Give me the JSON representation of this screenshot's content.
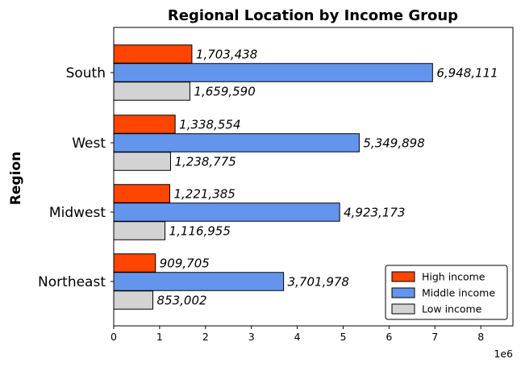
{
  "chart_data": {
    "type": "bar",
    "orientation": "horizontal",
    "title": "Regional Location by Income Group",
    "xlabel": "",
    "ylabel": "Region",
    "x_offset_label": "1e6",
    "categories": [
      "Northeast",
      "Midwest",
      "West",
      "South"
    ],
    "xlim": [
      0,
      8700000
    ],
    "xticks": [
      0,
      1,
      2,
      3,
      4,
      5,
      6,
      7,
      8
    ],
    "grid": false,
    "legend_position": "bottom-right",
    "series": [
      {
        "name": "High income",
        "color": "#ff4500",
        "values": [
          909705,
          1221385,
          1338554,
          1703438
        ],
        "labels": [
          "909,705",
          "1,221,385",
          "1,338,554",
          "1,703,438"
        ]
      },
      {
        "name": "Middle income",
        "color": "#6495ed",
        "values": [
          3701978,
          4923173,
          5349898,
          6948111
        ],
        "labels": [
          "3,701,978",
          "4,923,173",
          "5,349,898",
          "6,948,111"
        ]
      },
      {
        "name": "Low income",
        "color": "#d3d3d3",
        "values": [
          853002,
          1116955,
          1238775,
          1659590
        ],
        "labels": [
          "853,002",
          "1,116,955",
          "1,238,775",
          "1,659,590"
        ]
      }
    ]
  }
}
